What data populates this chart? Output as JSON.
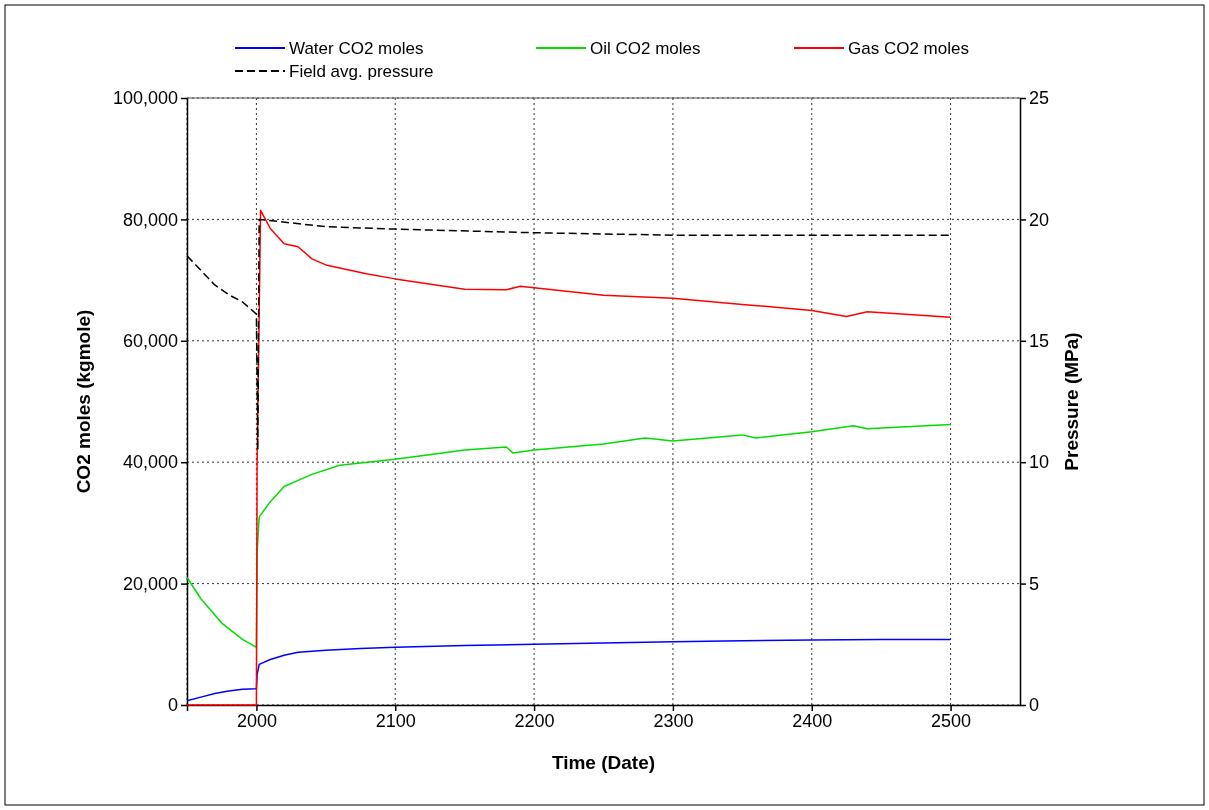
{
  "chart_data": {
    "type": "line",
    "xlabel": "Time (Date)",
    "ylabel": "CO2 moles (kgmole)",
    "y2label": "Pressure (MPa)",
    "xlim": [
      1950,
      2550
    ],
    "xticks": [
      {
        "value": 1950,
        "label": null
      },
      2000,
      2100,
      2200,
      2300,
      2400,
      2500
    ],
    "ylim": [
      0,
      100000
    ],
    "yticks": [
      {
        "value": 0,
        "label": "0"
      },
      {
        "value": 20000,
        "label": "20,000"
      },
      {
        "value": 40000,
        "label": "40,000"
      },
      {
        "value": 60000,
        "label": "60,000"
      },
      {
        "value": 80000,
        "label": "80,000"
      },
      {
        "value": 100000,
        "label": "100,000"
      }
    ],
    "y2lim": [
      0,
      25
    ],
    "y2ticks": [
      0,
      5,
      10,
      15,
      20,
      25
    ],
    "grid": true,
    "legend": "top",
    "series": [
      {
        "name": "Water CO2 moles",
        "color": "#0000ff",
        "x": [
          1950,
          1960,
          1970,
          1980,
          1990,
          2000,
          2000.5,
          2002,
          2010,
          2020,
          2030,
          2050,
          2075,
          2100,
          2150,
          2200,
          2250,
          2300,
          2350,
          2400,
          2450,
          2500
        ],
        "values": [
          700,
          1300,
          1900,
          2300,
          2600,
          2700,
          5000,
          6700,
          7500,
          8200,
          8700,
          9000,
          9300,
          9500,
          9800,
          10000,
          10200,
          10400,
          10600,
          10700,
          10800,
          10800
        ]
      },
      {
        "name": "Oil CO2 moles",
        "color": "#00dd00",
        "x": [
          1950,
          1960,
          1975,
          1990,
          2000,
          2000.5,
          2002,
          2010,
          2020,
          2030,
          2040,
          2060,
          2080,
          2100,
          2150,
          2180,
          2185,
          2200,
          2250,
          2280,
          2300,
          2350,
          2360,
          2400,
          2430,
          2440,
          2500
        ],
        "values": [
          21000,
          17500,
          13500,
          10800,
          9500,
          25000,
          31000,
          33500,
          36000,
          37000,
          38000,
          39500,
          40000,
          40500,
          42000,
          42500,
          41500,
          42000,
          43000,
          44000,
          43500,
          44500,
          44000,
          45000,
          46000,
          45500,
          46200
        ]
      },
      {
        "name": "Gas CO2 moles",
        "color": "#ff0000",
        "x": [
          1950,
          2000,
          2000.5,
          2003,
          2010,
          2020,
          2030,
          2040,
          2050,
          2060,
          2080,
          2100,
          2150,
          2180,
          2190,
          2250,
          2300,
          2350,
          2400,
          2425,
          2440,
          2500
        ],
        "values": [
          0,
          0,
          40000,
          81500,
          78500,
          76000,
          75500,
          73500,
          72500,
          72000,
          71000,
          70200,
          68500,
          68400,
          69000,
          67500,
          67000,
          66000,
          65000,
          64000,
          64800,
          63900
        ]
      },
      {
        "name": "Field avg. pressure",
        "color": "#000000",
        "axis": "y2",
        "line_style": "dashed",
        "x": [
          1950,
          1960,
          1970,
          1980,
          1990,
          2000,
          2001,
          2002,
          2050,
          2100,
          2200,
          2300,
          2400,
          2500
        ],
        "values": [
          18.5,
          17.9,
          17.3,
          16.9,
          16.6,
          16.1,
          10.5,
          20.0,
          19.7,
          19.6,
          19.45,
          19.35,
          19.35,
          19.35
        ]
      }
    ]
  }
}
